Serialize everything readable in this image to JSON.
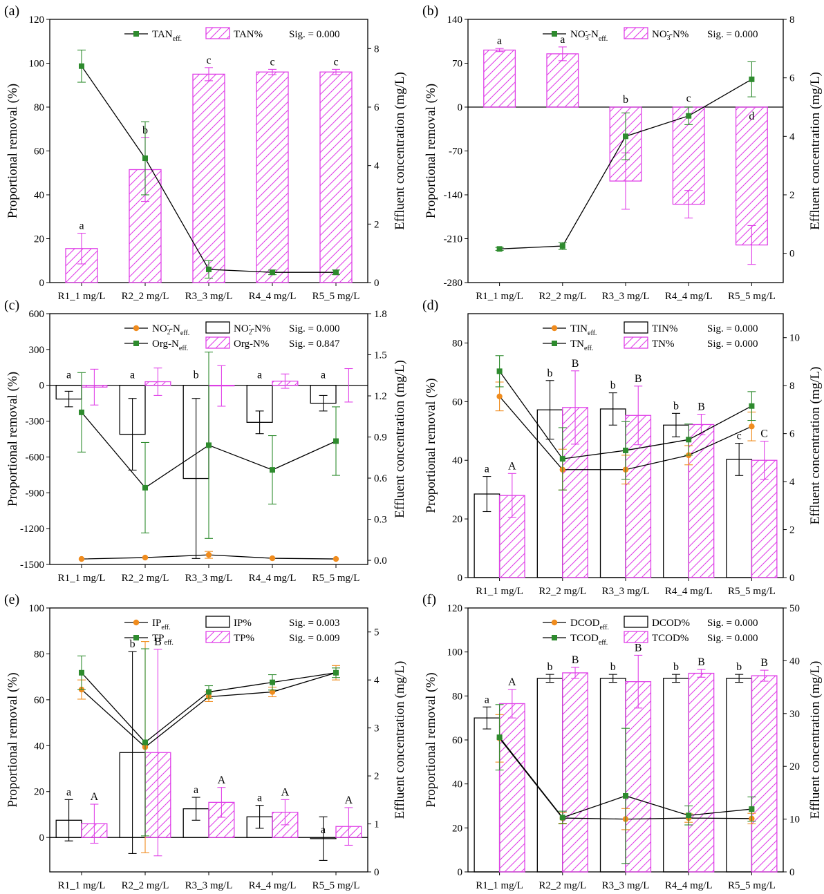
{
  "figure": {
    "x_categories": [
      "R1_1 mg/L",
      "R2_2 mg/L",
      "R3_3 mg/L",
      "R4_4 mg/L",
      "R5_5 mg/L"
    ],
    "left_axis_label": "Proportional removal (%)",
    "right_axis_label": "Effluent concentration (mg/L)",
    "colors": {
      "black": "#000000",
      "magenta": "#e040e8",
      "green": "#2e8b2e",
      "orange": "#f08c1e"
    }
  },
  "chart_data": [
    {
      "panel": "(a)",
      "type": "bar",
      "categories": [
        "R1_1 mg/L",
        "R2_2 mg/L",
        "R3_3 mg/L",
        "R4_4 mg/L",
        "R5_5 mg/L"
      ],
      "ylim": [
        0,
        120
      ],
      "yticks": [
        0,
        20,
        40,
        60,
        80,
        100,
        120
      ],
      "y2lim": [
        0,
        9
      ],
      "y2ticks": [
        0,
        2,
        4,
        6,
        8
      ],
      "bars": [
        {
          "name": "TAN%",
          "color": "#e040e8",
          "hatch": true,
          "values": [
            15.5,
            51.5,
            95,
            96,
            96
          ],
          "err": [
            7,
            14.5,
            3,
            1.2,
            1.2
          ],
          "letters": [
            "a",
            "b",
            "c",
            "c",
            "c"
          ]
        }
      ],
      "lines": [
        {
          "name": "TAN",
          "sub": "eff.",
          "color": "#2e8b2e",
          "marker": "square",
          "values": [
            7.4,
            4.25,
            0.45,
            0.35,
            0.35
          ],
          "err": [
            0.55,
            1.25,
            0.3,
            0.08,
            0.08
          ]
        }
      ],
      "sig": [
        "Sig. = 0.000"
      ]
    },
    {
      "panel": "(b)",
      "type": "bar",
      "categories": [
        "R1_1 mg/L",
        "R2_2 mg/L",
        "R3_3 mg/L",
        "R4_4 mg/L",
        "R5_5 mg/L"
      ],
      "ylim": [
        -280,
        140
      ],
      "yticks": [
        -280,
        -210,
        -140,
        -70,
        0,
        70,
        140
      ],
      "y2lim": [
        -1,
        8
      ],
      "y2ticks": [
        0,
        2,
        4,
        6,
        8
      ],
      "bars": [
        {
          "name": "NO3-N%",
          "label_main": "NO",
          "label_sub": "3",
          "label_sup": "-",
          "label_tail": "-N%",
          "color": "#e040e8",
          "hatch": true,
          "values": [
            91,
            85,
            -118,
            -155,
            -220
          ],
          "err": [
            2.5,
            11,
            45,
            22,
            31
          ],
          "letters": [
            "a",
            "a",
            "b",
            "c",
            "d"
          ]
        }
      ],
      "lines": [
        {
          "name": "NO3-Neff.",
          "label_main": "NO",
          "label_sub": "3",
          "label_sup": "-",
          "label_tail": "-N",
          "sub": "eff.",
          "color": "#2e8b2e",
          "marker": "square",
          "values": [
            0.15,
            0.25,
            4.0,
            4.7,
            5.95
          ],
          "err": [
            0.05,
            0.12,
            0.8,
            0.3,
            0.6
          ]
        }
      ],
      "sig": [
        "Sig. = 0.000"
      ]
    },
    {
      "panel": "(c)",
      "type": "bar",
      "categories": [
        "R1_1 mg/L",
        "R2_2 mg/L",
        "R3_3 mg/L",
        "R4_4 mg/L",
        "R5_5 mg/L"
      ],
      "ylim": [
        -1500,
        600
      ],
      "yticks": [
        -1500,
        -1200,
        -900,
        -600,
        -300,
        0,
        300,
        600
      ],
      "y2lim": [
        -0.03,
        1.8
      ],
      "y2ticks": [
        0.0,
        0.3,
        0.6,
        0.9,
        1.2,
        1.5,
        1.8
      ],
      "bars": [
        {
          "name": "NO2-N%",
          "label_main": "NO",
          "label_sub": "2",
          "label_sup": "-",
          "label_tail": "-N%",
          "color": "#000000",
          "hatch": false,
          "values": [
            -115,
            -410,
            -780,
            -310,
            -150
          ],
          "err": [
            65,
            300,
            670,
            95,
            65
          ],
          "letters": [
            "a",
            "a",
            "b",
            "a",
            "a"
          ]
        },
        {
          "name": "Org-N%",
          "color": "#e040e8",
          "hatch": true,
          "values": [
            -15,
            30,
            -5,
            35,
            0
          ],
          "err": [
            150,
            115,
            170,
            60,
            140
          ],
          "letters": [
            "",
            "",
            "",
            "",
            ""
          ]
        }
      ],
      "lines": [
        {
          "name": "NO2-Neff.",
          "label_main": "NO",
          "label_sub": "2",
          "label_sup": "-",
          "label_tail": "-N",
          "sub": "eff.",
          "color": "#f08c1e",
          "marker": "circle",
          "values": [
            0.01,
            0.02,
            0.04,
            0.015,
            0.01
          ],
          "err": [
            0,
            0,
            0.025,
            0,
            0
          ]
        },
        {
          "name": "Org-N",
          "sub": "eff.",
          "color": "#2e8b2e",
          "marker": "square",
          "values": [
            1.08,
            0.53,
            0.84,
            0.66,
            0.87
          ],
          "err": [
            0.29,
            0.33,
            0.68,
            0.25,
            0.25
          ]
        }
      ],
      "sig": [
        "Sig. = 0.000",
        "Sig. = 0.847"
      ]
    },
    {
      "panel": "(d)",
      "type": "bar",
      "categories": [
        "R1_1 mg/L",
        "R2_2 mg/L",
        "R3_3 mg/L",
        "R4_4 mg/L",
        "R5_5 mg/L"
      ],
      "ylim": [
        0,
        90
      ],
      "yticks": [
        0,
        20,
        40,
        60,
        80
      ],
      "y2lim": [
        0,
        11
      ],
      "y2ticks": [
        0,
        2,
        4,
        6,
        8,
        10
      ],
      "bars": [
        {
          "name": "TIN%",
          "color": "#000000",
          "hatch": false,
          "values": [
            28.5,
            57.2,
            57.5,
            52,
            40.3
          ],
          "err": [
            6,
            10,
            5.5,
            4,
            5.5
          ],
          "letters": [
            "a",
            "b",
            "b",
            "b",
            "c"
          ]
        },
        {
          "name": "TN%",
          "color": "#e040e8",
          "hatch": true,
          "values": [
            28,
            58,
            55.3,
            52.2,
            40
          ],
          "err": [
            7.5,
            12.5,
            10,
            3.5,
            6.5
          ],
          "letters": [
            "A",
            "B",
            "B",
            "B",
            "C"
          ]
        }
      ],
      "lines": [
        {
          "name": "TIN",
          "sub": "eff.",
          "color": "#f08c1e",
          "marker": "circle",
          "values": [
            7.55,
            4.5,
            4.5,
            5.1,
            6.3
          ],
          "err": [
            0.6,
            0.85,
            0.6,
            0.4,
            0.6
          ]
        },
        {
          "name": "TN",
          "sub": "eff.",
          "color": "#2e8b2e",
          "marker": "square",
          "values": [
            8.6,
            4.95,
            5.3,
            5.75,
            7.15
          ],
          "err": [
            0.65,
            1.3,
            1.2,
            0.65,
            0.6
          ]
        }
      ],
      "sig": [
        "Sig. = 0.000",
        "Sig. = 0.000"
      ]
    },
    {
      "panel": "(e)",
      "type": "bar",
      "categories": [
        "R1_1 mg/L",
        "R2_2 mg/L",
        "R3_3 mg/L",
        "R4_4 mg/L",
        "R5_5 mg/L"
      ],
      "ylim": [
        -15,
        100
      ],
      "yticks": [
        0,
        20,
        40,
        60,
        80,
        100
      ],
      "y2lim": [
        0,
        5.5
      ],
      "y2ticks": [
        0,
        1,
        2,
        3,
        4,
        5
      ],
      "bars": [
        {
          "name": "IP%",
          "color": "#000000",
          "hatch": false,
          "values": [
            7.5,
            37,
            12.5,
            9,
            -0.5
          ],
          "err": [
            9,
            44,
            5,
            5,
            9.5
          ],
          "letters": [
            "a",
            "b",
            "a",
            "a",
            "a"
          ]
        },
        {
          "name": "TP%",
          "color": "#e040e8",
          "hatch": true,
          "values": [
            6,
            37,
            15.3,
            11,
            4.8
          ],
          "err": [
            8.5,
            45,
            6.5,
            5.5,
            8.2
          ],
          "letters": [
            "A",
            "B",
            "A",
            "A",
            "A"
          ]
        }
      ],
      "lines": [
        {
          "name": "IP",
          "sub": "eff.",
          "color": "#f08c1e",
          "marker": "circle",
          "values": [
            3.8,
            2.6,
            3.65,
            3.75,
            4.15
          ],
          "err": [
            0.2,
            2.2,
            0.1,
            0.1,
            0.15
          ]
        },
        {
          "name": "TP",
          "sub": "eff.",
          "color": "#2e8b2e",
          "marker": "square",
          "values": [
            4.15,
            2.7,
            3.75,
            3.95,
            4.15
          ],
          "err": [
            0.35,
            1.95,
            0.13,
            0.16,
            0.1
          ]
        }
      ],
      "sig": [
        "Sig. = 0.003",
        "Sig. = 0.009"
      ]
    },
    {
      "panel": "(f)",
      "type": "bar",
      "categories": [
        "R1_1 mg/L",
        "R2_2 mg/L",
        "R3_3 mg/L",
        "R4_4 mg/L",
        "R5_5 mg/L"
      ],
      "ylim": [
        0,
        120
      ],
      "yticks": [
        0,
        20,
        40,
        60,
        80,
        100,
        120
      ],
      "y2lim": [
        0,
        50
      ],
      "y2ticks": [
        0,
        10,
        20,
        30,
        40,
        50
      ],
      "bars": [
        {
          "name": "DCOD%",
          "color": "#000000",
          "hatch": false,
          "values": [
            70,
            88,
            88,
            88,
            88
          ],
          "err": [
            5,
            1.8,
            1.8,
            1.8,
            1.8
          ],
          "letters": [
            "a",
            "b",
            "b",
            "b",
            "b"
          ]
        },
        {
          "name": "TCOD%",
          "color": "#e040e8",
          "hatch": true,
          "values": [
            76.5,
            90.5,
            86.5,
            90.3,
            89.2
          ],
          "err": [
            6.5,
            2.5,
            12,
            1.8,
            2.5
          ],
          "letters": [
            "A",
            "B",
            "B",
            "B",
            "B"
          ]
        }
      ],
      "lines": [
        {
          "name": "DCOD",
          "sub": "eff.",
          "color": "#f08c1e",
          "marker": "circle",
          "values": [
            25.3,
            10.2,
            10.0,
            10.2,
            10.1
          ],
          "err": [
            4.5,
            1.0,
            2.0,
            0.8,
            1.0
          ]
        },
        {
          "name": "TCOD",
          "sub": "eff.",
          "color": "#2e8b2e",
          "marker": "square",
          "values": [
            25.5,
            10.3,
            14.4,
            10.7,
            11.9
          ],
          "err": [
            6.2,
            1.2,
            12.8,
            1.8,
            2.3
          ]
        }
      ],
      "sig": [
        "Sig. = 0.000",
        "Sig. = 0.000"
      ]
    }
  ]
}
